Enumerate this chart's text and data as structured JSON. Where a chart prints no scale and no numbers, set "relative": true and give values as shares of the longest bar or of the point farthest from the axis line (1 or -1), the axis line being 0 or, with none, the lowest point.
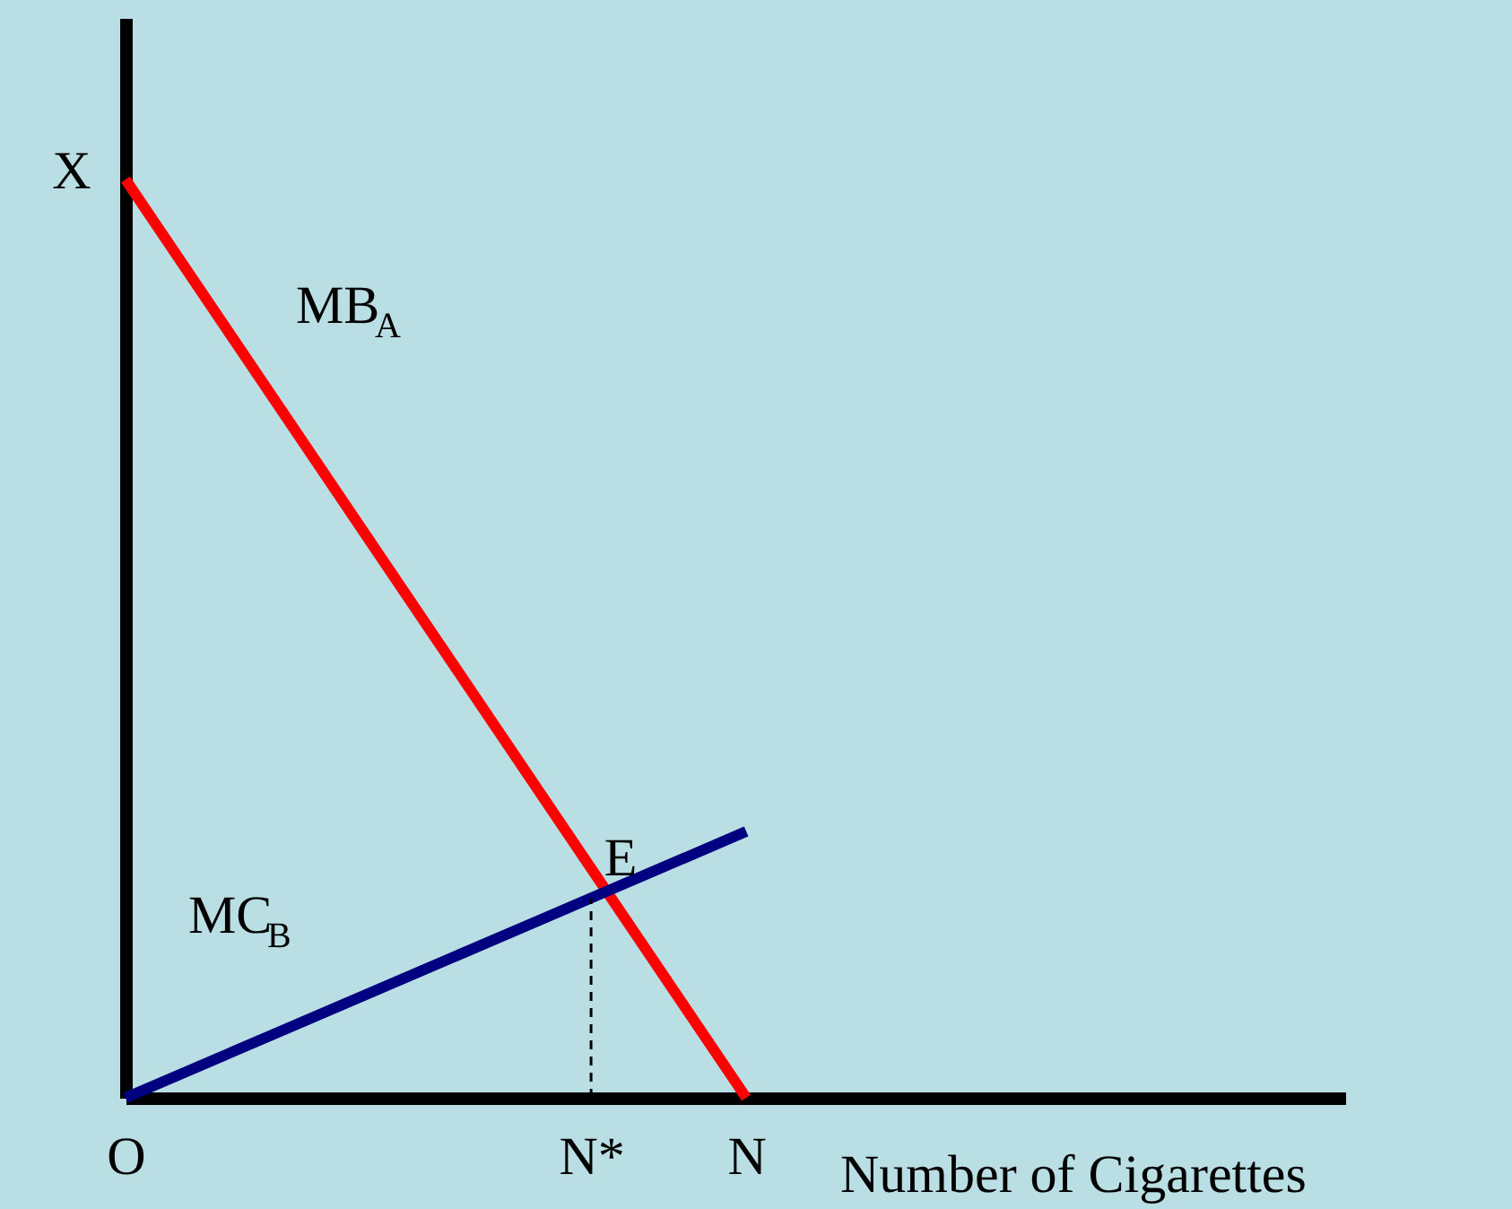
{
  "chart_data": {
    "type": "line",
    "relative": true,
    "xlabel": "Number of Cigarettes",
    "categories": [
      "O",
      null,
      null,
      "N*",
      "N",
      null,
      null,
      null
    ],
    "tick_labels": "x",
    "grid": false,
    "marker": "none",
    "series": [
      {
        "name": "MB$_{A}$",
        "color": "#ff0000",
        "values": [
          1,
          0.75,
          0.5,
          0.25,
          0,
          null,
          null,
          null
        ]
      },
      {
        "name": "MC$_{B}$",
        "color": "#000080",
        "values": [
          0,
          0.0725,
          0.145,
          0.2175,
          0.29,
          null,
          null,
          null
        ]
      }
    ],
    "ref_lines": [
      {
        "axis": "x",
        "value": "N*",
        "color": "#000000",
        "line_style": "dashed"
      }
    ],
    "annotations": [
      "X",
      "E"
    ]
  }
}
